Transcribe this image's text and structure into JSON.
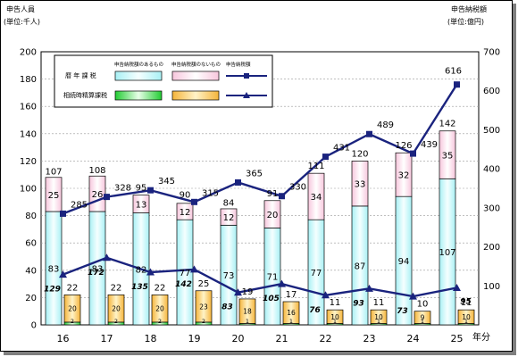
{
  "chart_data": {
    "type": "bar",
    "left_axis_title": "申告人員",
    "left_axis_unit": "(単位:千人)",
    "right_axis_title": "申告納税額",
    "right_axis_unit": "(単位:億円)",
    "x_axis_unit": "年分",
    "categories": [
      "16",
      "17",
      "18",
      "19",
      "20",
      "21",
      "22",
      "23",
      "24",
      "25"
    ],
    "ylim_left": [
      0,
      200
    ],
    "ylim_right": [
      0,
      700
    ],
    "yticks_left": [
      "0",
      "20",
      "40",
      "60",
      "80",
      "100",
      "120",
      "140",
      "160",
      "180",
      "200"
    ],
    "yticks_right": [
      "100",
      "200",
      "300",
      "400",
      "500",
      "600",
      "700"
    ],
    "legend": {
      "row1_label": "暦 年 課 税",
      "row2_label": "相続時精算課税",
      "col1": "申告納税額のあるもの",
      "col2": "申告納税額のないもの",
      "col3": "申告納税額"
    },
    "series": {
      "calendar_with_tax": [
        83,
        83,
        82,
        77,
        73,
        71,
        77,
        87,
        94,
        107
      ],
      "calendar_without_tax": [
        25,
        26,
        13,
        12,
        12,
        20,
        34,
        33,
        32,
        35
      ],
      "calendar_total": [
        107,
        108,
        95,
        90,
        84,
        91,
        111,
        120,
        126,
        142
      ],
      "settlement_with_tax": [
        2,
        2,
        2,
        2,
        1,
        1,
        1,
        1,
        1,
        1
      ],
      "settlement_without_tax": [
        20,
        20,
        20,
        23,
        18,
        16,
        10,
        10,
        9,
        10
      ],
      "settlement_total": [
        22,
        22,
        22,
        25,
        19,
        17,
        11,
        11,
        10,
        11
      ],
      "calendar_tax_amount": [
        285,
        328,
        345,
        315,
        365,
        330,
        431,
        489,
        439,
        616
      ],
      "settlement_tax_amount": [
        129,
        172,
        135,
        142,
        83,
        105,
        76,
        93,
        73,
        95
      ]
    }
  }
}
